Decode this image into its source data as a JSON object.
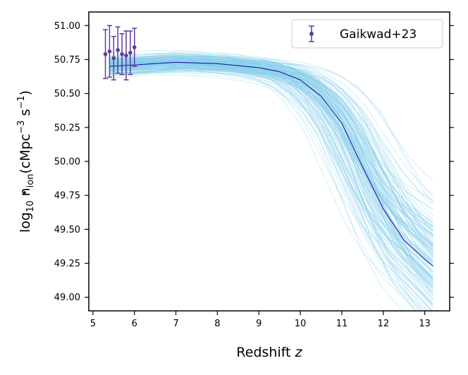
{
  "chart_data": {
    "type": "line",
    "xlabel": "Redshift",
    "xlabel_var": "z",
    "ylabel": {
      "prefix": "log",
      "prefix_sub": "10",
      "symbol": "n",
      "symbol_sub": "ion",
      "units_open": "(cMpc",
      "units_exp1": "−3",
      "units_mid": " s",
      "units_exp2": "−1",
      "units_close": ")"
    },
    "xlim": [
      4.9,
      13.6
    ],
    "ylim": [
      48.9,
      51.1
    ],
    "xticks": [
      5,
      6,
      7,
      8,
      9,
      10,
      11,
      12,
      13
    ],
    "yticks": [
      49.0,
      49.25,
      49.5,
      49.75,
      50.0,
      50.25,
      50.5,
      50.75,
      51.0
    ],
    "ytick_labels": [
      "49.00",
      "49.25",
      "49.50",
      "49.75",
      "50.00",
      "50.25",
      "50.50",
      "50.75",
      "51.00"
    ],
    "colors": {
      "samples": "#87ceeb",
      "median": "#1a1aa6",
      "points": "#5e3c99",
      "axes": "#000000"
    },
    "median_line": {
      "name": "median",
      "x": [
        5.4,
        6.0,
        7.0,
        8.0,
        9.0,
        9.5,
        10.0,
        10.5,
        11.0,
        11.5,
        12.0,
        12.5,
        13.0,
        13.2
      ],
      "y": [
        50.7,
        50.71,
        50.73,
        50.72,
        50.69,
        50.66,
        50.6,
        50.48,
        50.28,
        49.96,
        49.65,
        49.42,
        49.28,
        49.23
      ]
    },
    "sample_band": {
      "name": "posterior samples",
      "count": 150,
      "x_range": [
        5.4,
        13.2
      ]
    },
    "series": [
      {
        "name": "Gaikwad+23",
        "type": "errorbar",
        "x": [
          5.3,
          5.4,
          5.5,
          5.6,
          5.7,
          5.8,
          5.9,
          6.0
        ],
        "y": [
          50.79,
          50.81,
          50.76,
          50.82,
          50.79,
          50.78,
          50.8,
          50.84
        ],
        "yerr": [
          0.18,
          0.19,
          0.16,
          0.17,
          0.15,
          0.18,
          0.16,
          0.14
        ]
      }
    ],
    "legend": {
      "location": "top-right",
      "entries": [
        "Gaikwad+23"
      ]
    }
  }
}
